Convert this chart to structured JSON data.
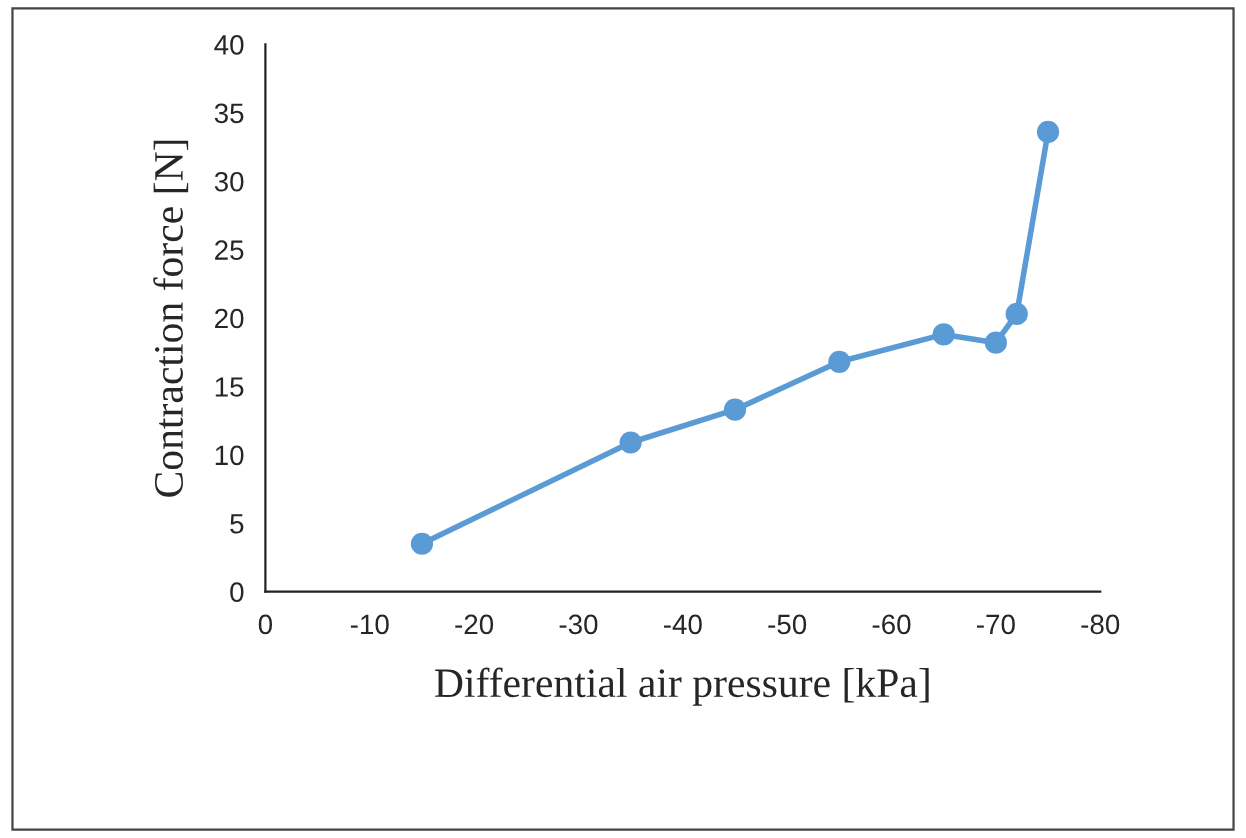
{
  "chart_data": {
    "type": "line",
    "xlabel": "Differential air pressure [kPa]",
    "ylabel": "Contraction force [N]",
    "x": [
      -15,
      -35,
      -45,
      -55,
      -65,
      -70,
      -72,
      -75
    ],
    "series": [
      {
        "color": "#5b9bd5",
        "values": [
          3.5,
          10.9,
          13.3,
          16.8,
          18.8,
          18.2,
          20.3,
          33.6
        ]
      }
    ],
    "xlim": [
      0,
      -80
    ],
    "xticks": [
      0,
      -10,
      -20,
      -30,
      -40,
      -50,
      -60,
      -70,
      -80
    ],
    "ylim": [
      0,
      40
    ],
    "yticks": [
      0,
      5,
      10,
      15,
      20,
      25,
      30,
      35,
      40
    ],
    "marker": "circle",
    "line_style": "solid",
    "grid": false
  }
}
